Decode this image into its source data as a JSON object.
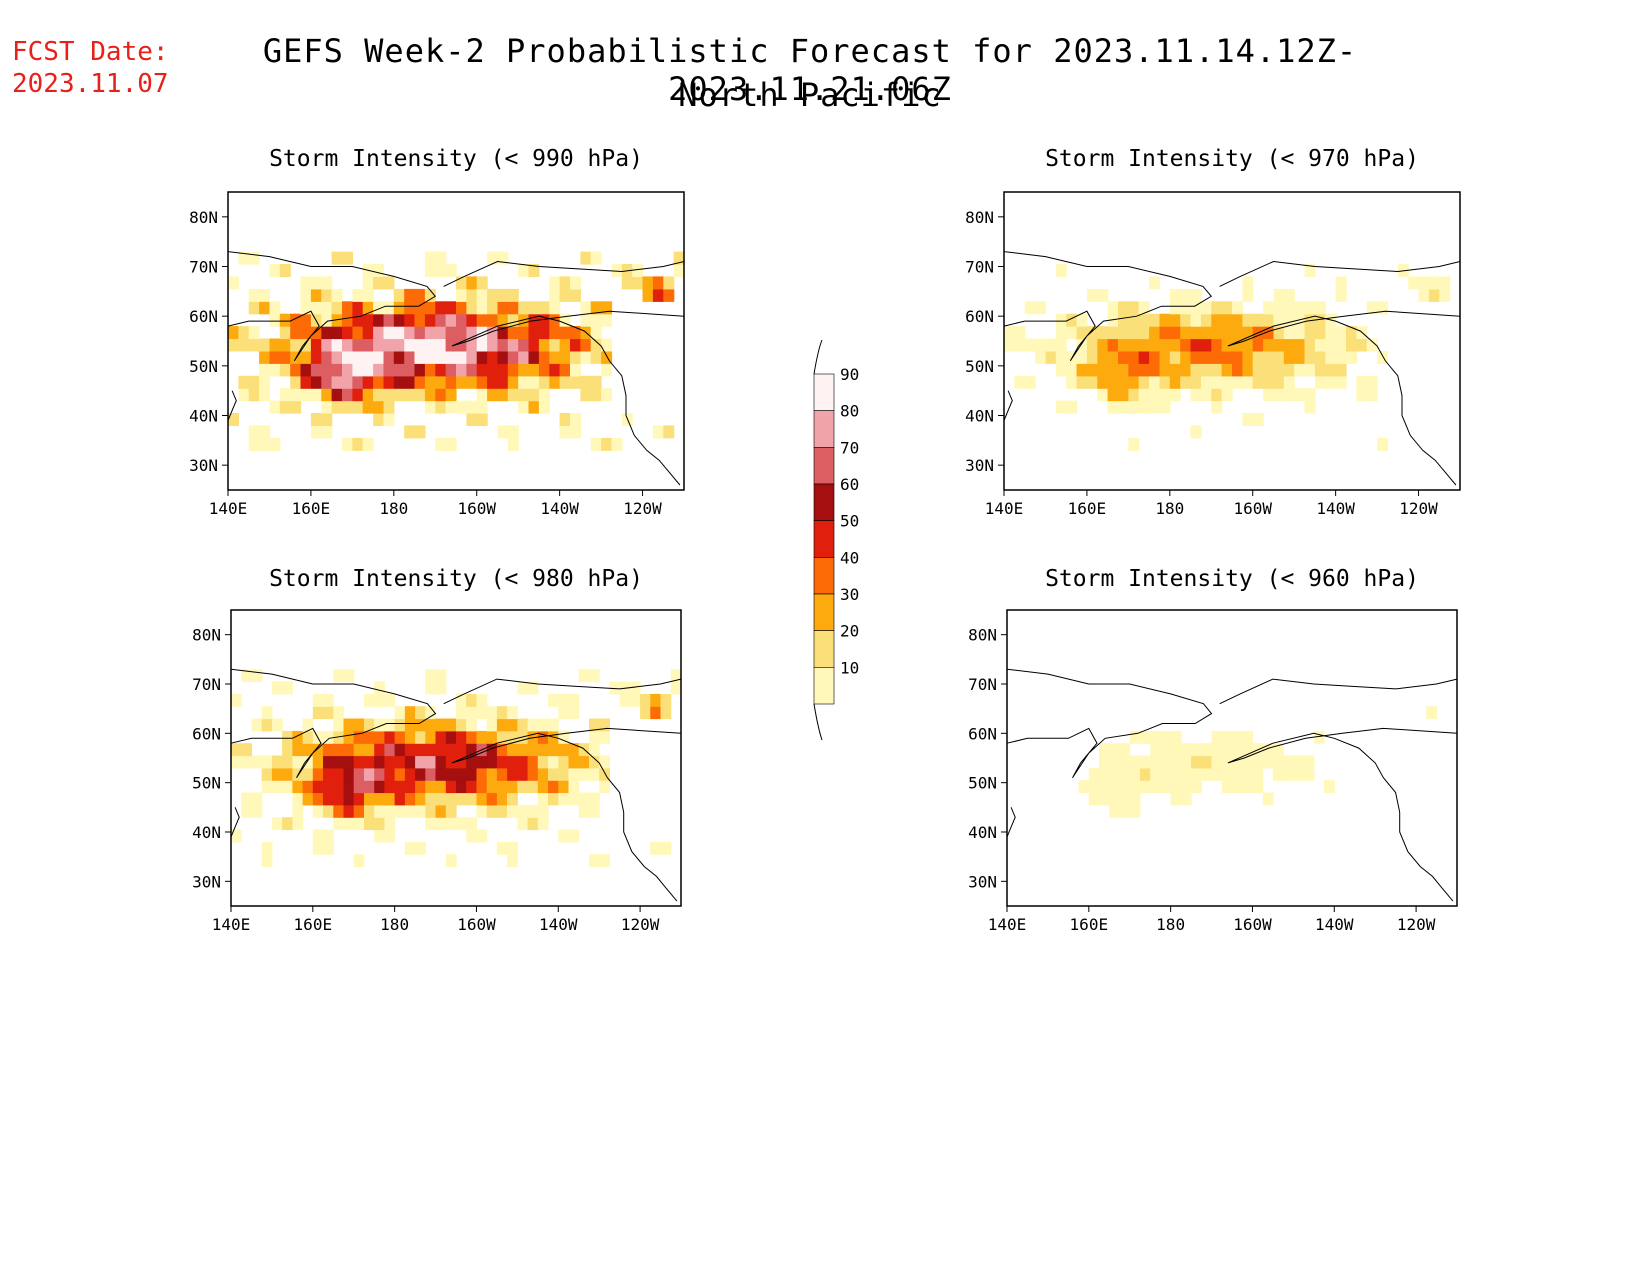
{
  "fcst": {
    "label": "FCST Date:",
    "date": "2023.11.07"
  },
  "title": {
    "line1": "GEFS Week-2 Probabilistic Forecast for 2023.11.14.12Z-2023.11.21.06Z",
    "line2": "North Pacific"
  },
  "axes": {
    "lat_labels": [
      "80N",
      "70N",
      "60N",
      "50N",
      "40N",
      "30N"
    ],
    "lon_labels": [
      "140E",
      "160E",
      "180",
      "160W",
      "140W",
      "120W"
    ]
  },
  "panels": [
    {
      "id": "p990",
      "title": "Storm Intensity (< 990 hPa)",
      "intensity": 1.0
    },
    {
      "id": "p970",
      "title": "Storm Intensity (< 970 hPa)",
      "intensity": 0.45
    },
    {
      "id": "p980",
      "title": "Storm Intensity (< 980 hPa)",
      "intensity": 0.72
    },
    {
      "id": "p960",
      "title": "Storm Intensity (< 960 hPa)",
      "intensity": 0.18
    }
  ],
  "colorbar": {
    "labels": [
      "90",
      "80",
      "70",
      "60",
      "50",
      "40",
      "30",
      "20",
      "10"
    ],
    "colors": [
      "#fff2f2",
      "#f0a3a8",
      "#dc5e62",
      "#a50f0f",
      "#e0200c",
      "#fd6b06",
      "#fdaa0e",
      "#fbe07a",
      "#fff8b8"
    ]
  }
}
